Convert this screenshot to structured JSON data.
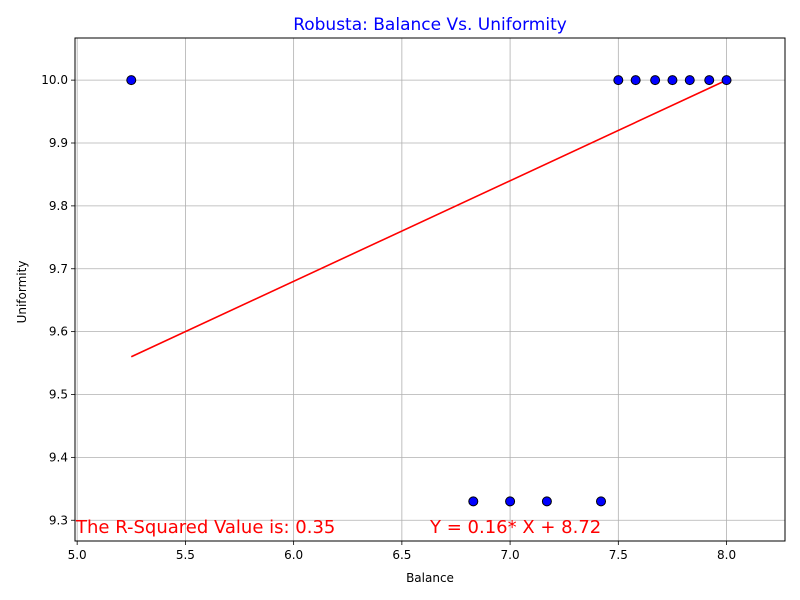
{
  "chart_data": {
    "type": "scatter",
    "title": "Robusta: Balance Vs. Uniformity",
    "xlabel": "Balance",
    "ylabel": "Uniformity",
    "xlim": [
      4.99,
      8.27
    ],
    "ylim": [
      9.267,
      10.067
    ],
    "xticks": [
      "5.0",
      "5.5",
      "6.0",
      "6.5",
      "7.0",
      "7.5",
      "8.0"
    ],
    "xtick_values": [
      5.0,
      5.5,
      6.0,
      6.5,
      7.0,
      7.5,
      8.0
    ],
    "yticks": [
      "9.3",
      "9.4",
      "9.5",
      "9.6",
      "9.7",
      "9.8",
      "9.9",
      "10.0"
    ],
    "ytick_values": [
      9.3,
      9.4,
      9.5,
      9.6,
      9.7,
      9.8,
      9.9,
      10.0
    ],
    "grid": true,
    "colors": {
      "points": "#0000ff",
      "point_edge": "#000000",
      "regression": "#ff0000",
      "title": "#0000ff",
      "annotation": "#ff0000"
    },
    "points": [
      {
        "x": 5.25,
        "y": 10.0
      },
      {
        "x": 6.83,
        "y": 9.33
      },
      {
        "x": 7.0,
        "y": 9.33
      },
      {
        "x": 7.17,
        "y": 9.33
      },
      {
        "x": 7.42,
        "y": 9.33
      },
      {
        "x": 7.5,
        "y": 10.0
      },
      {
        "x": 7.58,
        "y": 10.0
      },
      {
        "x": 7.67,
        "y": 10.0
      },
      {
        "x": 7.75,
        "y": 10.0
      },
      {
        "x": 7.83,
        "y": 10.0
      },
      {
        "x": 7.92,
        "y": 10.0
      },
      {
        "x": 8.0,
        "y": 10.0
      }
    ],
    "regression": {
      "slope": 0.16,
      "intercept": 8.72,
      "x_range": [
        5.25,
        8.0
      ]
    },
    "annotations": {
      "r_squared": "The R-Squared Value is: 0.35",
      "equation": "Y = 0.16* X + 8.72"
    }
  }
}
